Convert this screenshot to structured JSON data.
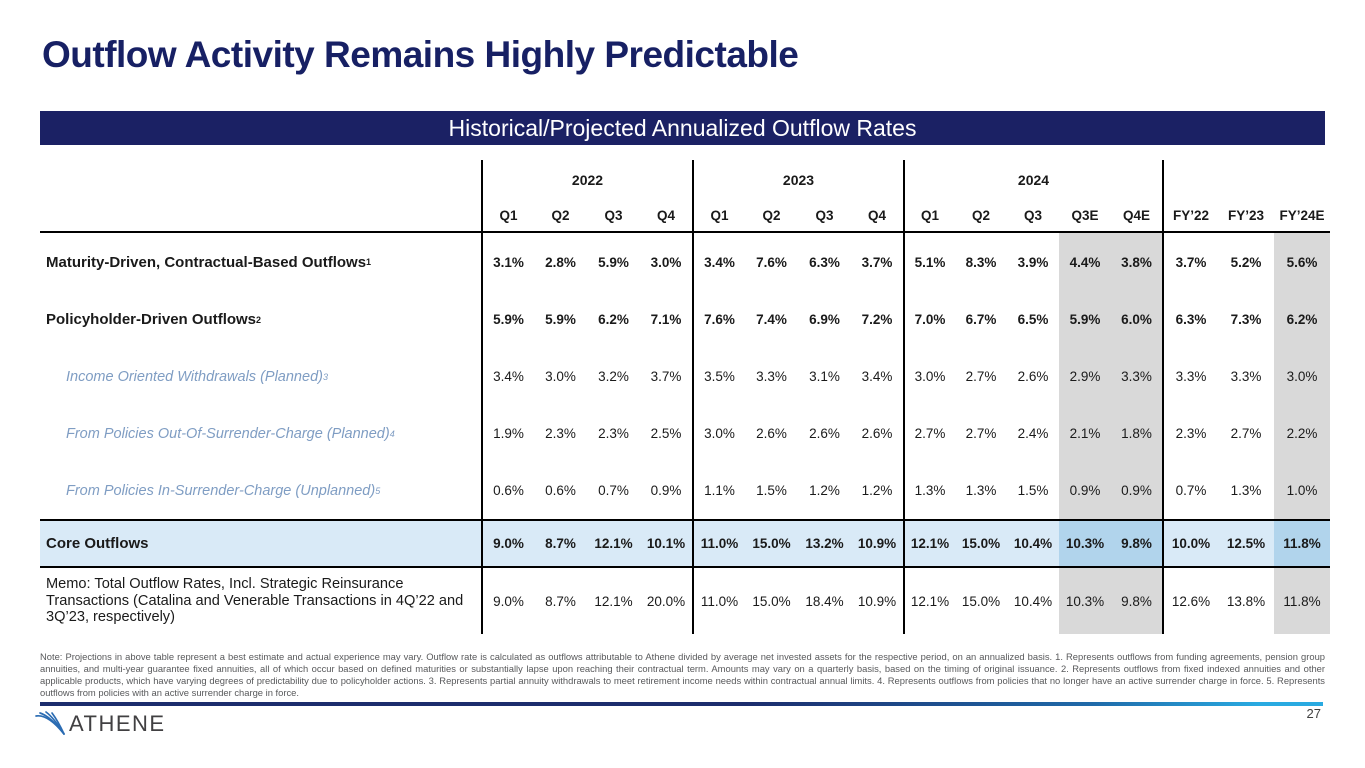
{
  "slide": {
    "title": "Outflow Activity Remains Highly Predictable",
    "banner": "Historical/Projected Annualized Outflow Rates",
    "page_number": "27",
    "logo_text": "ATHENE",
    "logo_icon": "feather-swoosh-icon",
    "note": "Note: Projections in above table represent a best estimate and actual experience may vary. Outflow rate is calculated as outflows attributable to Athene divided by average net invested assets for the respective period, on an annualized basis. 1. Represents outflows from funding agreements, pension group annuities, and multi-year guarantee fixed annuities, all of which occur based on defined maturities or substantially lapse upon reaching their contractual term. Amounts may vary on a quarterly basis, based on the timing of original issuance. 2. Represents outflows from fixed indexed annuities and other applicable products, which have varying degrees of predictability due to policyholder actions. 3. Represents partial annuity withdrawals to meet retirement income needs within contractual annual limits. 4. Represents outflows from policies that no longer have an active surrender charge in force. 5. Represents outflows from policies with an active surrender charge in force."
  },
  "colors": {
    "navy": "#1b2164",
    "title_navy": "#172064",
    "shaded_gray": "#d9d9d9",
    "core_row_blue": "#d9eaf7",
    "core_row_blue_shaded": "#b1d4ec",
    "subrow_blue": "#7f9dc3",
    "footer_gradient_end": "#29aae1"
  },
  "table": {
    "year_groups": [
      {
        "label": "2022",
        "cols": 4
      },
      {
        "label": "2023",
        "cols": 4
      },
      {
        "label": "2024",
        "cols": 5
      },
      {
        "label": "",
        "cols": 3
      }
    ],
    "columns": [
      "Q1",
      "Q2",
      "Q3",
      "Q4",
      "Q1",
      "Q2",
      "Q3",
      "Q4",
      "Q1",
      "Q2",
      "Q3",
      "Q3E",
      "Q4E",
      "FY’22",
      "FY’23",
      "FY’24E"
    ],
    "shaded_column_indexes": [
      11,
      12,
      15
    ],
    "group_start_indexes": [
      0,
      4,
      8,
      13
    ],
    "rows": [
      {
        "label": "Maturity-Driven, Contractual-Based Outflows",
        "footnote_ref": "1",
        "style": "bold",
        "values": [
          "3.1%",
          "2.8%",
          "5.9%",
          "3.0%",
          "3.4%",
          "7.6%",
          "6.3%",
          "3.7%",
          "5.1%",
          "8.3%",
          "3.9%",
          "4.4%",
          "3.8%",
          "3.7%",
          "5.2%",
          "5.6%"
        ]
      },
      {
        "label": "Policyholder-Driven Outflows",
        "footnote_ref": "2",
        "style": "bold",
        "values": [
          "5.9%",
          "5.9%",
          "6.2%",
          "7.1%",
          "7.6%",
          "7.4%",
          "6.9%",
          "7.2%",
          "7.0%",
          "6.7%",
          "6.5%",
          "5.9%",
          "6.0%",
          "6.3%",
          "7.3%",
          "6.2%"
        ]
      },
      {
        "label": "Income Oriented Withdrawals (Planned)",
        "footnote_ref": "3",
        "style": "italic",
        "values": [
          "3.4%",
          "3.0%",
          "3.2%",
          "3.7%",
          "3.5%",
          "3.3%",
          "3.1%",
          "3.4%",
          "3.0%",
          "2.7%",
          "2.6%",
          "2.9%",
          "3.3%",
          "3.3%",
          "3.3%",
          "3.0%"
        ]
      },
      {
        "label": "From Policies Out-Of-Surrender-Charge (Planned)",
        "footnote_ref": "4",
        "style": "italic",
        "values": [
          "1.9%",
          "2.3%",
          "2.3%",
          "2.5%",
          "3.0%",
          "2.6%",
          "2.6%",
          "2.6%",
          "2.7%",
          "2.7%",
          "2.4%",
          "2.1%",
          "1.8%",
          "2.3%",
          "2.7%",
          "2.2%"
        ]
      },
      {
        "label": "From Policies In-Surrender-Charge (Unplanned)",
        "footnote_ref": "5",
        "style": "italic",
        "values": [
          "0.6%",
          "0.6%",
          "0.7%",
          "0.9%",
          "1.1%",
          "1.5%",
          "1.2%",
          "1.2%",
          "1.3%",
          "1.3%",
          "1.5%",
          "0.9%",
          "0.9%",
          "0.7%",
          "1.3%",
          "1.0%"
        ]
      },
      {
        "label": "Core Outflows",
        "footnote_ref": "",
        "style": "total",
        "values": [
          "9.0%",
          "8.7%",
          "12.1%",
          "10.1%",
          "11.0%",
          "15.0%",
          "13.2%",
          "10.9%",
          "12.1%",
          "15.0%",
          "10.4%",
          "10.3%",
          "9.8%",
          "10.0%",
          "12.5%",
          "11.8%"
        ]
      },
      {
        "label": "Memo: Total Outflow Rates, Incl. Strategic Reinsurance Transactions (Catalina and Venerable Transactions in 4Q’22 and 3Q’23, respectively)",
        "footnote_ref": "",
        "style": "memo",
        "values": [
          "9.0%",
          "8.7%",
          "12.1%",
          "20.0%",
          "11.0%",
          "15.0%",
          "18.4%",
          "10.9%",
          "12.1%",
          "15.0%",
          "10.4%",
          "10.3%",
          "9.8%",
          "12.6%",
          "13.8%",
          "11.8%"
        ]
      }
    ]
  }
}
